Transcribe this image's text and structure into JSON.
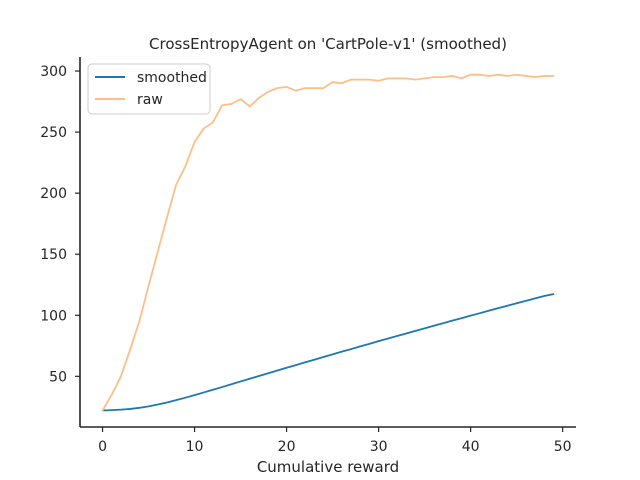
{
  "chart_data": {
    "type": "line",
    "title": "CrossEntropyAgent on 'CartPole-v1' (smoothed)",
    "xlabel": "Cumulative reward",
    "ylabel": "",
    "xlim": [
      -2.45,
      51.45
    ],
    "ylim": [
      8.5,
      311.5
    ],
    "xticks": [
      0,
      10,
      20,
      30,
      40,
      50
    ],
    "yticks": [
      50,
      100,
      150,
      200,
      250,
      300
    ],
    "grid": false,
    "legend": "top-left",
    "x": [
      0,
      1,
      2,
      3,
      4,
      5,
      6,
      7,
      8,
      9,
      10,
      11,
      12,
      13,
      14,
      15,
      16,
      17,
      18,
      19,
      20,
      21,
      22,
      23,
      24,
      25,
      26,
      27,
      28,
      29,
      30,
      31,
      32,
      33,
      34,
      35,
      36,
      37,
      38,
      39,
      40,
      41,
      42,
      43,
      44,
      45,
      46,
      47,
      48,
      49
    ],
    "series": [
      {
        "name": "smoothed",
        "color": "#1f77b4",
        "values": [
          22.0,
          22.3,
          22.7,
          23.3,
          24.2,
          25.4,
          26.9,
          28.6,
          30.5,
          32.5,
          34.6,
          36.8,
          39.0,
          41.2,
          43.5,
          45.8,
          48.0,
          50.3,
          52.5,
          54.8,
          57.0,
          59.2,
          61.4,
          63.6,
          65.8,
          68.0,
          70.2,
          72.3,
          74.5,
          76.6,
          78.8,
          80.9,
          83.0,
          85.1,
          87.2,
          89.3,
          91.4,
          93.5,
          95.6,
          97.6,
          99.7,
          101.7,
          103.8,
          105.8,
          107.8,
          109.8,
          111.8,
          113.8,
          115.8,
          117.3
        ]
      },
      {
        "name": "raw",
        "color": "#ffbe86",
        "values": [
          22,
          35,
          50,
          72,
          95,
          124,
          152,
          180,
          207,
          222,
          242,
          253,
          258,
          272,
          273,
          277,
          271,
          278,
          283,
          286,
          287,
          284,
          286,
          286,
          286,
          291,
          290,
          293,
          293,
          293,
          292,
          294,
          294,
          294,
          293,
          294,
          295,
          295,
          296,
          294,
          297,
          297,
          296,
          297,
          296,
          297,
          296,
          295,
          296,
          296
        ]
      }
    ]
  }
}
